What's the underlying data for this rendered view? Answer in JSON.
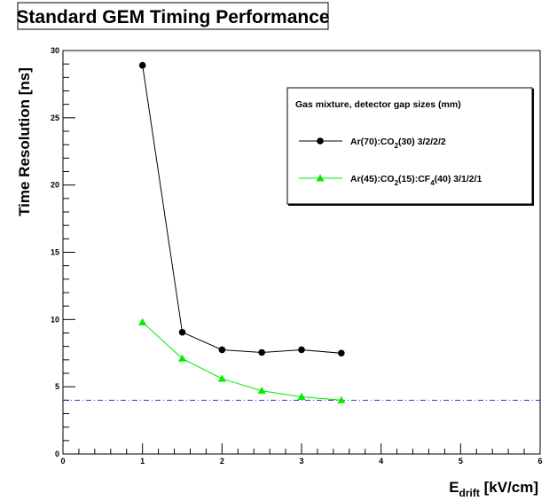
{
  "chart_data": {
    "type": "line",
    "title": "Standard GEM Timing Performance",
    "ylabel": "Time Resolution [ns]",
    "xlabel": {
      "base": "E",
      "sub": "drift",
      "rest": " [kV/cm]"
    },
    "xlim": [
      0,
      6
    ],
    "ylim": [
      0,
      30
    ],
    "xticks": [
      "0",
      "1",
      "2",
      "3",
      "4",
      "5",
      "6"
    ],
    "yticks": [
      "0",
      "5",
      "10",
      "15",
      "20",
      "25",
      "30"
    ],
    "grid": false,
    "legend": {
      "title": "Gas mixture, detector gap sizes (mm)",
      "placement": "top-right"
    },
    "series": [
      {
        "name": "Ar(70):CO2(30) 3/2/2/2",
        "name_parts": [
          [
            "Ar(70):CO",
            "n"
          ],
          [
            "2",
            "sub"
          ],
          [
            "(30) 3/2/2/2",
            "n"
          ]
        ],
        "color": "#000000",
        "marker": "circle",
        "x": [
          1.0,
          1.5,
          2.0,
          2.5,
          3.0,
          3.5
        ],
        "values": [
          28.9,
          9.05,
          7.75,
          7.55,
          7.75,
          7.5
        ]
      },
      {
        "name": "Ar(45):CO2(15):CF4(40) 3/1/2/1",
        "name_parts": [
          [
            "Ar(45):CO",
            "n"
          ],
          [
            "2",
            "sub"
          ],
          [
            "(15):CF",
            "n"
          ],
          [
            "4",
            "sub"
          ],
          [
            "(40) 3/1/2/1",
            "n"
          ]
        ],
        "color": "#00ee00",
        "marker": "triangle",
        "x": [
          1.0,
          1.5,
          2.0,
          2.5,
          3.0,
          3.5
        ],
        "values": [
          9.8,
          7.1,
          5.6,
          4.7,
          4.25,
          4.0
        ]
      }
    ],
    "reference_line": {
      "y": 4.0,
      "color": "#3333cc",
      "style": "dash-dot"
    }
  }
}
